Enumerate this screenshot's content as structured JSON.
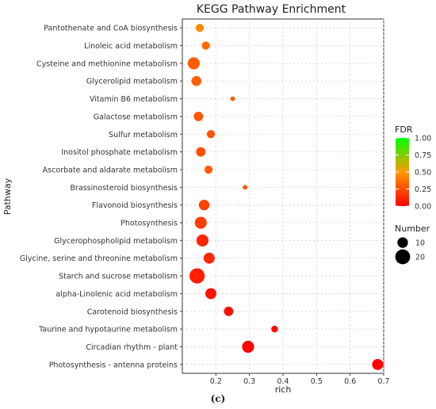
{
  "figure": {
    "caption": "(c)"
  },
  "chart_data": {
    "type": "scatter",
    "title": "KEGG Pathway Enrichment",
    "xlabel": "rich",
    "ylabel": "Pathway",
    "xlim": [
      0.1,
      0.7
    ],
    "xticks": [
      "0.2",
      "0.3",
      "0.4",
      "0.5",
      "0.6",
      "0.7"
    ],
    "grid": true,
    "categories": [
      "Pantothenate and CoA biosynthesis",
      "Linoleic acid metabolism",
      "Cysteine and methionine metabolism",
      "Glycerolipid metabolism",
      "Vitamin B6 metabolism",
      "Galactose metabolism",
      "Sulfur metabolism",
      "Inositol phosphate metabolism",
      "Ascorbate and aldarate metabolism",
      "Brassinosteroid biosynthesis",
      "Flavonoid biosynthesis",
      "Photosynthesis",
      "Glycerophospholipid metabolism",
      "Glycine, serine and threonine metabolism",
      "Starch and sucrose metabolism",
      "alpha-Linolenic acid metabolism",
      "Carotenoid biosynthesis",
      "Taurine and hypotaurine metabolism",
      "Circadian rhythm - plant",
      "Photosynthesis - antenna proteins"
    ],
    "points": [
      {
        "rich": 0.152,
        "number": 6,
        "fdr": 0.45
      },
      {
        "rich": 0.17,
        "number": 6,
        "fdr": 0.35
      },
      {
        "rich": 0.134,
        "number": 13,
        "fdr": 0.3
      },
      {
        "rich": 0.142,
        "number": 9,
        "fdr": 0.32
      },
      {
        "rich": 0.25,
        "number": 2,
        "fdr": 0.3
      },
      {
        "rich": 0.148,
        "number": 8,
        "fdr": 0.28
      },
      {
        "rich": 0.185,
        "number": 6,
        "fdr": 0.27
      },
      {
        "rich": 0.155,
        "number": 8,
        "fdr": 0.26
      },
      {
        "rich": 0.178,
        "number": 6,
        "fdr": 0.3
      },
      {
        "rich": 0.287,
        "number": 2,
        "fdr": 0.28
      },
      {
        "rich": 0.165,
        "number": 10,
        "fdr": 0.22
      },
      {
        "rich": 0.155,
        "number": 13,
        "fdr": 0.2
      },
      {
        "rich": 0.16,
        "number": 13,
        "fdr": 0.12
      },
      {
        "rich": 0.18,
        "number": 11,
        "fdr": 0.13
      },
      {
        "rich": 0.144,
        "number": 21,
        "fdr": 0.1
      },
      {
        "rich": 0.185,
        "number": 11,
        "fdr": 0.06
      },
      {
        "rich": 0.238,
        "number": 8,
        "fdr": 0.05
      },
      {
        "rich": 0.375,
        "number": 4,
        "fdr": 0.03
      },
      {
        "rich": 0.296,
        "number": 13,
        "fdr": 0.01
      },
      {
        "rich": 0.682,
        "number": 11,
        "fdr": 0.0
      }
    ],
    "color_legend": {
      "title": "FDR",
      "ticks": [
        "1.00",
        "0.75",
        "0.50",
        "0.25",
        "0.00"
      ],
      "low_color": "#ff0000",
      "mid_color": "#ff9900",
      "high_color": "#00ff00"
    },
    "size_legend": {
      "title": "Number",
      "entries": [
        {
          "label": "10",
          "value": 10
        },
        {
          "label": "20",
          "value": 20
        }
      ]
    },
    "legend_position": "right"
  }
}
